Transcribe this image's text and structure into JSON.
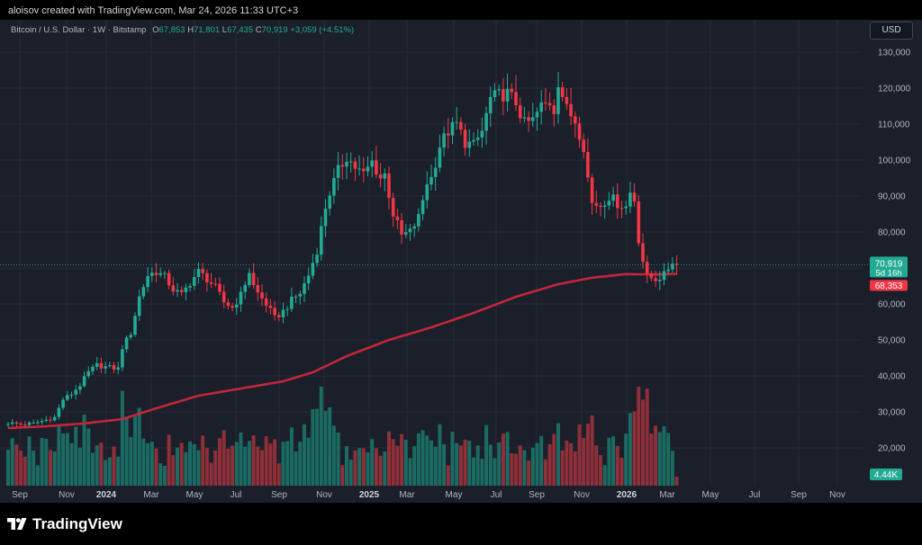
{
  "caption": "aloisov created with TradingView.com, Mar 24, 2026 11:33 UTC+3",
  "legend": {
    "symbol": "Bitcoin / U.S. Dollar · 1W · Bitstamp",
    "o_label": "O",
    "o": "67,853",
    "h_label": "H",
    "h": "71,801",
    "l_label": "L",
    "l": "67,435",
    "c_label": "C",
    "c": "70,919",
    "change": "+3,059 (+4.51%)"
  },
  "currency": "USD",
  "brand": "TradingView",
  "colors": {
    "up": "#22ab94",
    "down": "#f23645",
    "ma": "#c2263b",
    "background": "#1b1f2a",
    "grid": "#262b38",
    "axis_text": "#b2b5be"
  },
  "chart_data": {
    "type": "candlestick",
    "grid": true,
    "y_axis": {
      "side": "right",
      "min": 10000,
      "max": 135000,
      "ticks": [
        "130,000",
        "120,000",
        "110,000",
        "100,000",
        "90,000",
        "80,000",
        "70,000",
        "60,000",
        "50,000",
        "40,000",
        "30,000",
        "20,000"
      ],
      "tick_values": [
        130000,
        120000,
        110000,
        100000,
        90000,
        80000,
        70000,
        60000,
        50000,
        40000,
        30000,
        20000
      ]
    },
    "x_axis": {
      "labels": [
        "Sep",
        "Nov",
        "2024",
        "Mar",
        "May",
        "Jul",
        "Sep",
        "Nov",
        "2025",
        "Mar",
        "May",
        "Jul",
        "Sep",
        "Nov",
        "2026",
        "Mar",
        "May",
        "Jul",
        "Sep",
        "Nov"
      ],
      "bold": [
        "2024",
        "2025",
        "2026"
      ]
    },
    "price_labels": [
      {
        "value": "70,919",
        "sub": "5d 16h",
        "color": "#22ab94"
      },
      {
        "value": "68,353",
        "color": "#f23645"
      }
    ],
    "volume_label": "4.44K",
    "anchors": [
      [
        0,
        27000
      ],
      [
        3,
        26500
      ],
      [
        6,
        26800
      ],
      [
        9,
        27800
      ],
      [
        11,
        28500
      ],
      [
        13,
        33500
      ],
      [
        15,
        35000
      ],
      [
        17,
        37500
      ],
      [
        19,
        41000
      ],
      [
        21,
        43000
      ],
      [
        23,
        42500
      ],
      [
        26,
        42000
      ],
      [
        27,
        48000
      ],
      [
        29,
        52000
      ],
      [
        31,
        62000
      ],
      [
        33,
        68000
      ],
      [
        35,
        69000
      ],
      [
        37,
        67500
      ],
      [
        39,
        64000
      ],
      [
        41,
        62500
      ],
      [
        43,
        66000
      ],
      [
        45,
        69000
      ],
      [
        47,
        67000
      ],
      [
        49,
        64500
      ],
      [
        51,
        60500
      ],
      [
        53,
        59000
      ],
      [
        55,
        62500
      ],
      [
        57,
        69000
      ],
      [
        58,
        65000
      ],
      [
        59,
        63000
      ],
      [
        61,
        60000
      ],
      [
        63,
        56000
      ],
      [
        65,
        58000
      ],
      [
        67,
        61000
      ],
      [
        69,
        63000
      ],
      [
        71,
        68000
      ],
      [
        73,
        75000
      ],
      [
        75,
        87000
      ],
      [
        76,
        91000
      ],
      [
        78,
        97000
      ],
      [
        80,
        101000
      ],
      [
        82,
        98000
      ],
      [
        84,
        96000
      ],
      [
        86,
        99500
      ],
      [
        88,
        95000
      ],
      [
        89,
        96000
      ],
      [
        91,
        85000
      ],
      [
        92,
        82000
      ],
      [
        93,
        79000
      ],
      [
        95,
        80000
      ],
      [
        97,
        84000
      ],
      [
        99,
        94000
      ],
      [
        100,
        95000
      ],
      [
        102,
        104000
      ],
      [
        104,
        108000
      ],
      [
        106,
        110000
      ],
      [
        108,
        105000
      ],
      [
        110,
        104000
      ],
      [
        112,
        108000
      ],
      [
        114,
        117000
      ],
      [
        116,
        118000
      ],
      [
        118,
        118500
      ],
      [
        120,
        116000
      ],
      [
        122,
        110000
      ],
      [
        124,
        111000
      ],
      [
        126,
        115000
      ],
      [
        128,
        116000
      ],
      [
        129,
        114000
      ],
      [
        130,
        122000
      ],
      [
        132,
        114000
      ],
      [
        134,
        111000
      ],
      [
        136,
        104000
      ],
      [
        137,
        95000
      ],
      [
        138,
        88000
      ],
      [
        140,
        87500
      ],
      [
        142,
        90000
      ],
      [
        144,
        88000
      ],
      [
        146,
        87000
      ],
      [
        147,
        91000
      ],
      [
        148,
        89000
      ],
      [
        149,
        78000
      ],
      [
        150,
        72000
      ],
      [
        151,
        67500
      ],
      [
        153,
        67000
      ],
      [
        155,
        68000
      ],
      [
        157,
        72000
      ],
      [
        158,
        70919
      ]
    ],
    "ma_anchors": [
      [
        0,
        25500
      ],
      [
        9,
        26000
      ],
      [
        18,
        26800
      ],
      [
        27,
        28000
      ],
      [
        35,
        31000
      ],
      [
        45,
        34500
      ],
      [
        55,
        36500
      ],
      [
        65,
        38500
      ],
      [
        72,
        41000
      ],
      [
        80,
        45500
      ],
      [
        90,
        50000
      ],
      [
        100,
        53500
      ],
      [
        110,
        57500
      ],
      [
        120,
        62000
      ],
      [
        130,
        65500
      ],
      [
        138,
        67300
      ],
      [
        146,
        68300
      ],
      [
        153,
        68200
      ],
      [
        158,
        68353
      ]
    ]
  }
}
